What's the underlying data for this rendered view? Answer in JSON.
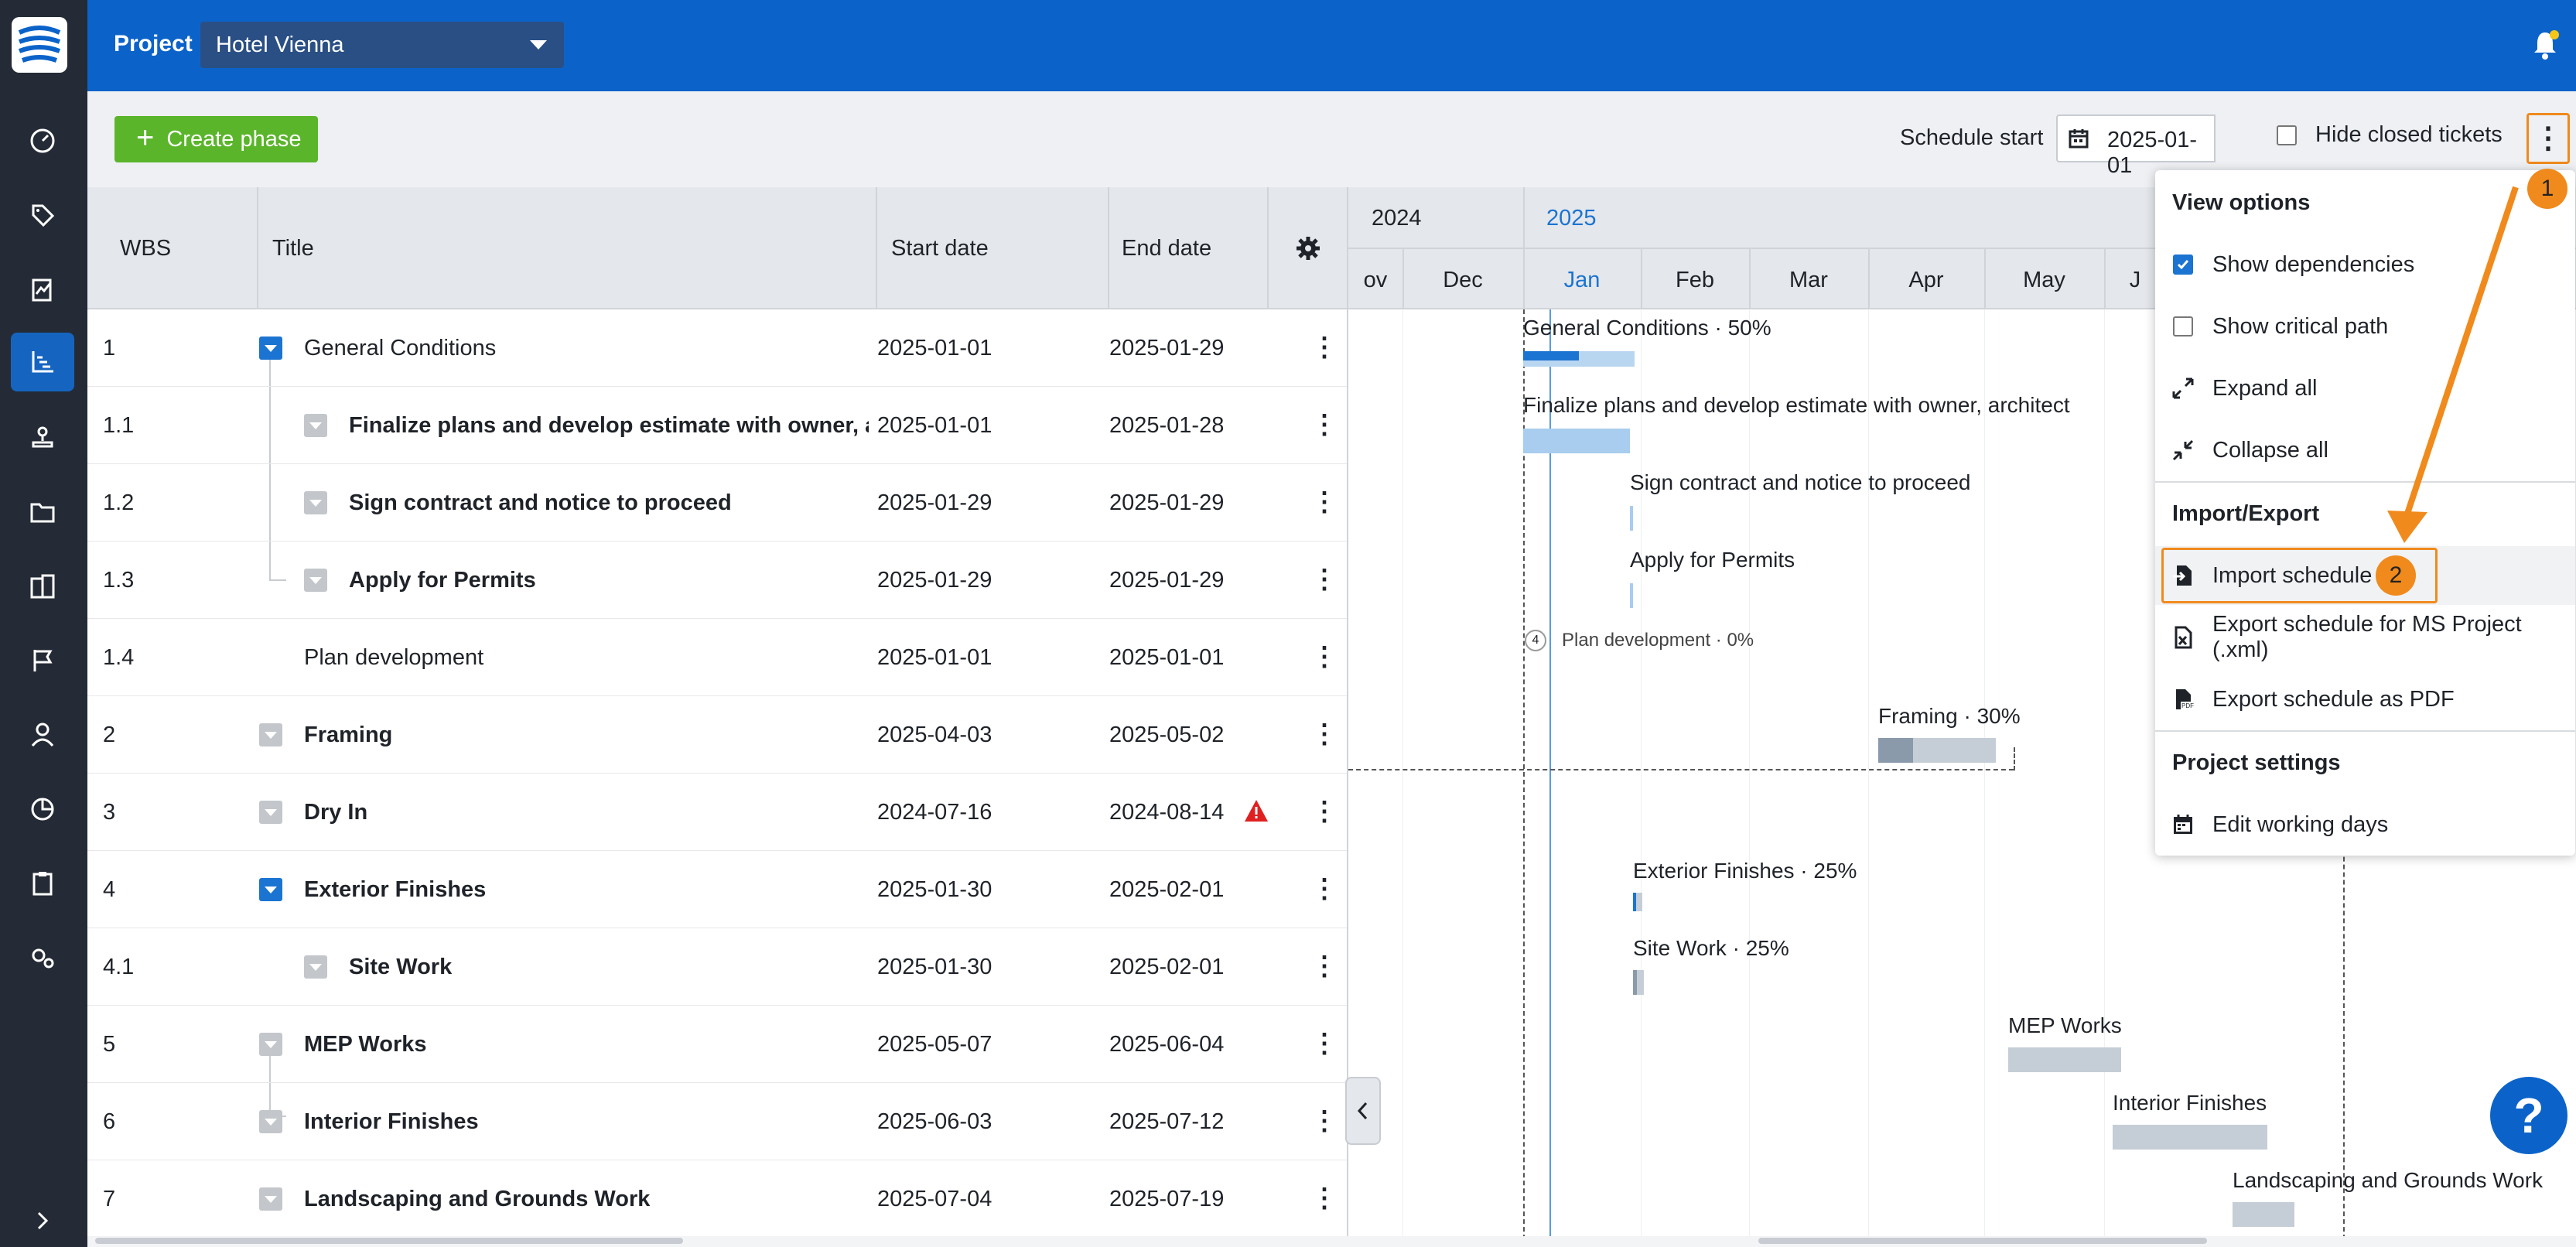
{
  "project": {
    "label": "Project",
    "selected": "Hotel Vienna"
  },
  "toolbar": {
    "create_phase": "Create phase",
    "schedule_start_label": "Schedule start",
    "schedule_start_value": "2025-01-01",
    "hide_closed_label": "Hide closed tickets"
  },
  "columns": {
    "wbs": "WBS",
    "title": "Title",
    "start": "Start date",
    "end": "End date"
  },
  "rows": [
    {
      "wbs": "1",
      "title": "General Conditions",
      "start": "2025-01-01",
      "end": "2025-01-29"
    },
    {
      "wbs": "1.1",
      "title": "Finalize plans and develop estimate with owner, arc...",
      "start": "2025-01-01",
      "end": "2025-01-28"
    },
    {
      "wbs": "1.2",
      "title": "Sign contract and notice to proceed",
      "start": "2025-01-29",
      "end": "2025-01-29"
    },
    {
      "wbs": "1.3",
      "title": "Apply for Permits",
      "start": "2025-01-29",
      "end": "2025-01-29"
    },
    {
      "wbs": "1.4",
      "title": "Plan development",
      "start": "2025-01-01",
      "end": "2025-01-01"
    },
    {
      "wbs": "2",
      "title": "Framing",
      "start": "2025-04-03",
      "end": "2025-05-02"
    },
    {
      "wbs": "3",
      "title": "Dry In",
      "start": "2024-07-16",
      "end": "2024-08-14"
    },
    {
      "wbs": "4",
      "title": "Exterior Finishes",
      "start": "2025-01-30",
      "end": "2025-02-01"
    },
    {
      "wbs": "4.1",
      "title": "Site Work",
      "start": "2025-01-30",
      "end": "2025-02-01"
    },
    {
      "wbs": "5",
      "title": "MEP Works",
      "start": "2025-05-07",
      "end": "2025-06-04"
    },
    {
      "wbs": "6",
      "title": "Interior Finishes",
      "start": "2025-06-03",
      "end": "2025-07-12"
    },
    {
      "wbs": "7",
      "title": "Landscaping and Grounds Work",
      "start": "2025-07-04",
      "end": "2025-07-19"
    }
  ],
  "gantt": {
    "years": [
      "2024",
      "2025"
    ],
    "months": [
      "ov",
      "Dec",
      "Jan",
      "Feb",
      "Mar",
      "Apr",
      "May",
      "J"
    ],
    "labels": {
      "general": "General Conditions · 50%",
      "finalize": "Finalize plans and develop estimate with owner, architect",
      "sign": "Sign contract and notice to proceed",
      "permits": "Apply for Permits",
      "plan_count": "4",
      "plan": "Plan development · 0%",
      "framing": "Framing · 30%",
      "exterior": "Exterior Finishes · 25%",
      "site": "Site Work · 25%",
      "mep": "MEP Works",
      "interior": "Interior Finishes",
      "landscaping": "Landscaping and Grounds Work"
    }
  },
  "menu": {
    "view_options": "View options",
    "show_dependencies": "Show dependencies",
    "show_critical_path": "Show critical path",
    "expand_all": "Expand all",
    "collapse_all": "Collapse all",
    "import_export": "Import/Export",
    "import_schedule": "Import schedule",
    "export_xml": "Export schedule for MS Project (.xml)",
    "export_pdf": "Export schedule as PDF",
    "project_settings": "Project settings",
    "edit_working_days": "Edit working days"
  },
  "annotations": {
    "badge1": "1",
    "badge2": "2"
  },
  "help": "?",
  "colors": {
    "accent": "#0b63c9",
    "sidebar": "#242b36",
    "green": "#5ab52b",
    "orange": "#f08a1c"
  }
}
